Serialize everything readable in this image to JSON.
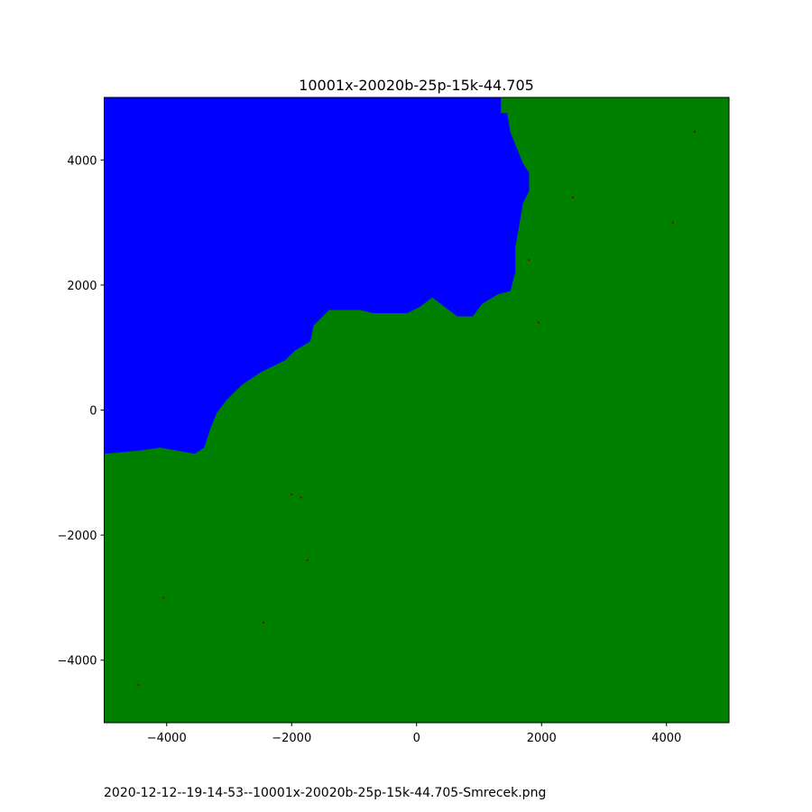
{
  "chart_data": {
    "type": "heatmap",
    "title": "10001x-20020b-25p-15k-44.705",
    "xlabel": "",
    "ylabel": "",
    "xlim": [
      -5000,
      5000
    ],
    "ylim": [
      -5000,
      5000
    ],
    "x_ticks": [
      -4000,
      -2000,
      0,
      2000,
      4000
    ],
    "y_ticks": [
      -4000,
      -2000,
      0,
      2000,
      4000
    ],
    "x_tick_labels": [
      "−4000",
      "−2000",
      "0",
      "2000",
      "4000"
    ],
    "y_tick_labels": [
      "−4000",
      "−2000",
      "0",
      "2000",
      "4000"
    ],
    "grid": false,
    "regions": [
      {
        "name": "blue-region",
        "color": "#0000ff",
        "boundary": [
          [
            -5000,
            5000
          ],
          [
            1350,
            5000
          ],
          [
            1350,
            4750
          ],
          [
            1450,
            4750
          ],
          [
            1500,
            4450
          ],
          [
            1600,
            4200
          ],
          [
            1700,
            3950
          ],
          [
            1800,
            3800
          ],
          [
            1800,
            3500
          ],
          [
            1700,
            3300
          ],
          [
            1650,
            3000
          ],
          [
            1580,
            2600
          ],
          [
            1580,
            2200
          ],
          [
            1500,
            1900
          ],
          [
            1300,
            1850
          ],
          [
            1050,
            1700
          ],
          [
            900,
            1500
          ],
          [
            650,
            1500
          ],
          [
            450,
            1650
          ],
          [
            250,
            1800
          ],
          [
            50,
            1650
          ],
          [
            -150,
            1550
          ],
          [
            -700,
            1550
          ],
          [
            -900,
            1600
          ],
          [
            -1400,
            1600
          ],
          [
            -1650,
            1350
          ],
          [
            -1700,
            1100
          ],
          [
            -1950,
            950
          ],
          [
            -2100,
            800
          ],
          [
            -2500,
            600
          ],
          [
            -2800,
            400
          ],
          [
            -3050,
            150
          ],
          [
            -3200,
            -50
          ],
          [
            -3300,
            -300
          ],
          [
            -3400,
            -600
          ],
          [
            -3550,
            -700
          ],
          [
            -4100,
            -600
          ],
          [
            -4450,
            -650
          ],
          [
            -5000,
            -700
          ]
        ]
      },
      {
        "name": "green-region",
        "color": "#008000",
        "boundary": [
          [
            -5000,
            -5000
          ],
          [
            5000,
            -5000
          ],
          [
            5000,
            5000
          ],
          [
            -5000,
            5000
          ]
        ]
      }
    ],
    "speckles": {
      "color": "#8b0000",
      "points": [
        [
          -4450,
          -4400
        ],
        [
          -4050,
          -3000
        ],
        [
          -2450,
          -3400
        ],
        [
          -1750,
          -2400
        ],
        [
          -1850,
          -1400
        ],
        [
          -2000,
          -1350
        ],
        [
          1950,
          1400
        ],
        [
          1800,
          2400
        ],
        [
          2500,
          3400
        ],
        [
          4100,
          3000
        ],
        [
          4450,
          4450
        ]
      ]
    }
  },
  "footer_text": "2020-12-12--19-14-53--10001x-20020b-25p-15k-44.705-Smrecek.png"
}
